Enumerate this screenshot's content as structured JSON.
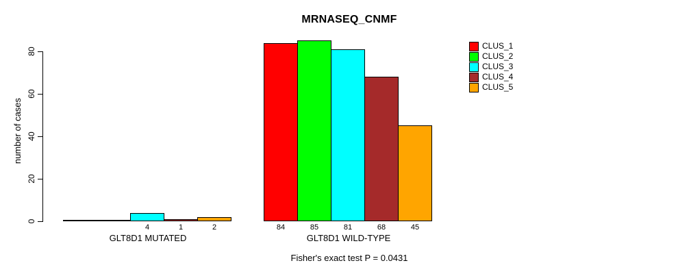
{
  "title": "MRNASEQ_CNMF",
  "annotation": "Fisher's exact test P = 0.0431",
  "chart_data": {
    "type": "bar",
    "title": "MRNASEQ_CNMF",
    "xlabel": "",
    "ylabel": "number of cases",
    "ylim": [
      0,
      85
    ],
    "yticks": [
      0,
      20,
      40,
      60,
      80
    ],
    "grid": false,
    "legend_position": "right",
    "categories": [
      "GLT8D1 MUTATED",
      "GLT8D1 WILD-TYPE"
    ],
    "series": [
      {
        "name": "CLUS_1",
        "color": "#FF0000",
        "values": [
          0,
          84
        ]
      },
      {
        "name": "CLUS_2",
        "color": "#00FF00",
        "values": [
          0,
          85
        ]
      },
      {
        "name": "CLUS_3",
        "color": "#00FFFF",
        "values": [
          4,
          81
        ]
      },
      {
        "name": "CLUS_4",
        "color": "#A52A2A",
        "values": [
          1,
          68
        ]
      },
      {
        "name": "CLUS_5",
        "color": "#FFA500",
        "values": [
          2,
          45
        ]
      }
    ],
    "bar_value_labels": {
      "shown": true,
      "hidden_when_zero": true
    },
    "annotation": "Fisher's exact test P = 0.0431",
    "bar_border_color": "#000000",
    "background_color": "#FFFFFF",
    "text_color": "#000000"
  }
}
